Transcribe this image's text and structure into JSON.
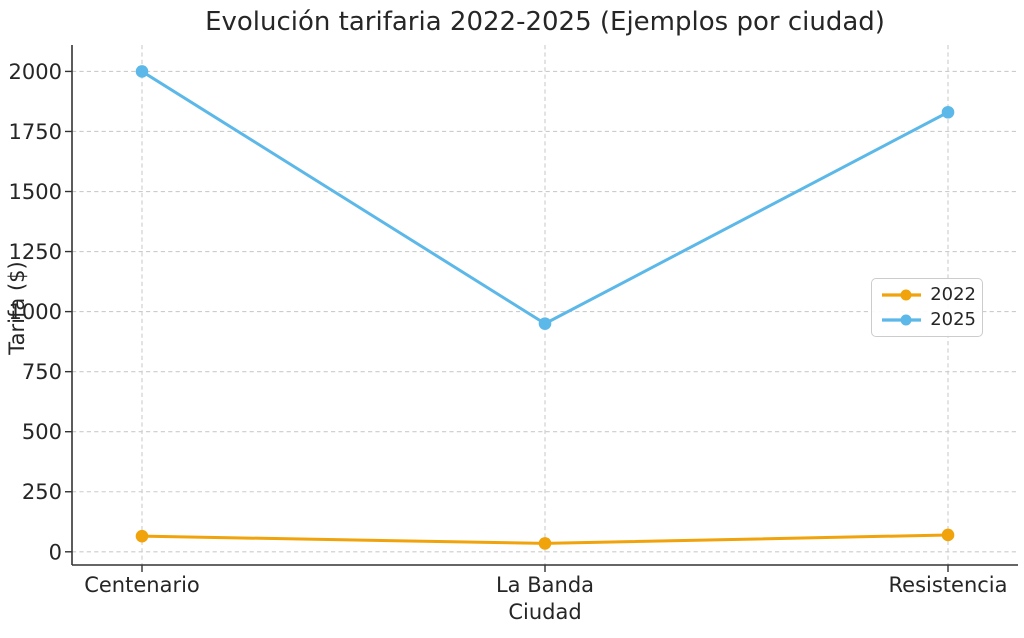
{
  "chart_data": {
    "type": "line",
    "title": "Evolución tarifaria 2022-2025 (Ejemplos por ciudad)",
    "xlabel": "Ciudad",
    "ylabel": "Tarifa ($)",
    "categories": [
      "Centenario",
      "La Banda",
      "Resistencia"
    ],
    "series": [
      {
        "name": "2022",
        "color": "#F0A30A",
        "values": [
          65,
          35,
          70
        ]
      },
      {
        "name": "2025",
        "color": "#5BB8E8",
        "values": [
          2000,
          950,
          1830
        ]
      }
    ],
    "yticks": [
      0,
      250,
      500,
      750,
      1000,
      1250,
      1500,
      1750,
      2000
    ],
    "ylim": [
      -55,
      2110
    ],
    "grid": "dashed",
    "grid_color": "#cccccc",
    "spine_color": "#333333",
    "text_color": "#262626",
    "background": "#ffffff",
    "legend_position": "center-right"
  }
}
